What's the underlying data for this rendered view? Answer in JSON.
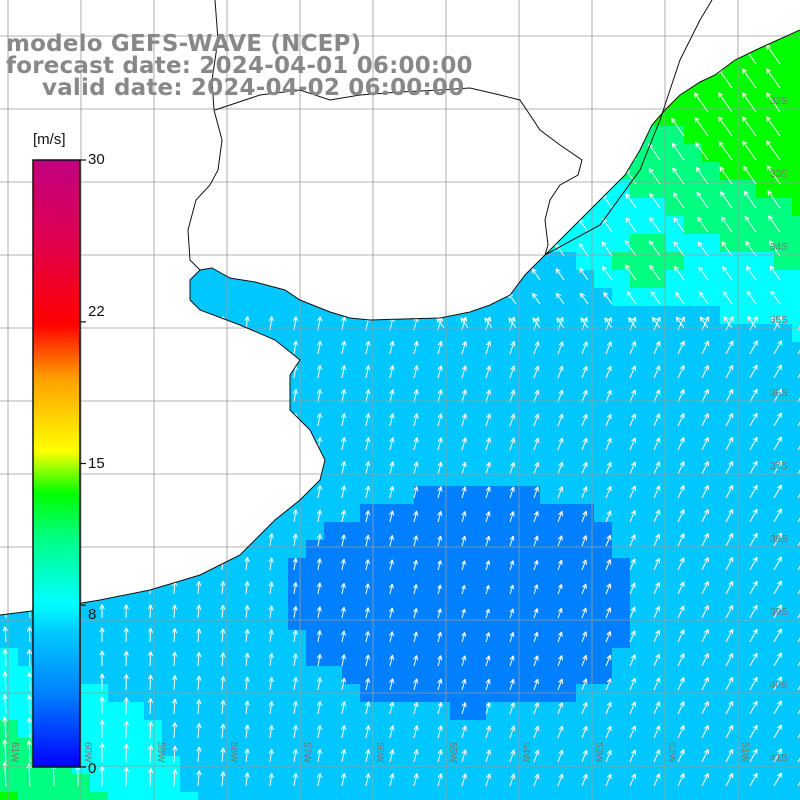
{
  "title": {
    "line1": "modelo GEFS-WAVE (NCEP)",
    "line2": "forecast date: 2024-04-01 06:00:00",
    "line3": "valid date: 2024-04-02 06:00:00"
  },
  "colorbar": {
    "units": "[m/s]",
    "ticks": [
      "30",
      "22",
      "15",
      "8",
      "0"
    ],
    "tick_values": [
      30,
      22,
      15,
      8,
      0
    ],
    "colors": [
      "#0000ff",
      "#0080ff",
      "#00c8ff",
      "#00ffff",
      "#00ff80",
      "#00ff00",
      "#80ff00",
      "#ffff00",
      "#ffa000",
      "#ff5000",
      "#ff0000",
      "#e00050",
      "#c00080"
    ]
  },
  "map": {
    "lat_labels": [
      "32S",
      "33S",
      "34S",
      "35S",
      "36S",
      "37S",
      "38S",
      "39S",
      "40S",
      "41S"
    ],
    "lon_labels": [
      "61W",
      "60W",
      "59W",
      "58W",
      "57W",
      "56W",
      "55W",
      "54W",
      "53W",
      "52W",
      "51W"
    ],
    "land_color": "#ffffff",
    "grid_color": "#9a9a9a",
    "field": "wind speed (m/s) and direction arrows"
  }
}
